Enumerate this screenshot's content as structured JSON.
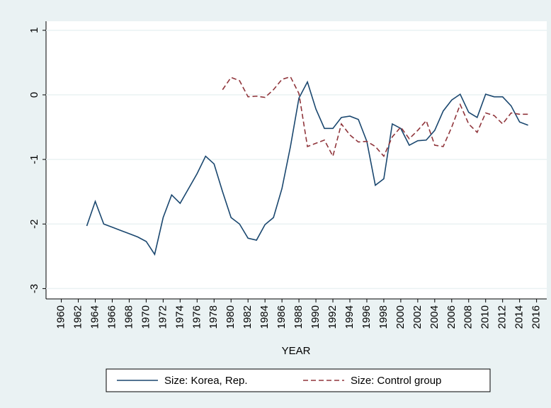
{
  "chart_data": {
    "type": "line",
    "x_label": "YEAR",
    "x": [
      1963,
      1964,
      1965,
      1966,
      1967,
      1968,
      1969,
      1970,
      1971,
      1972,
      1973,
      1974,
      1975,
      1976,
      1977,
      1978,
      1979,
      1980,
      1981,
      1982,
      1983,
      1984,
      1985,
      1986,
      1987,
      1988,
      1989,
      1990,
      1991,
      1992,
      1993,
      1994,
      1995,
      1996,
      1997,
      1998,
      1999,
      2000,
      2001,
      2002,
      2003,
      2004,
      2005,
      2006,
      2007,
      2008,
      2009,
      2010,
      2011,
      2012,
      2013,
      2014,
      2015
    ],
    "series": [
      {
        "name": "Size: Korea, Rep.",
        "color": "#1a476f",
        "dash": "solid",
        "values": [
          -2.03,
          -1.65,
          -2.0,
          -2.05,
          -2.1,
          -2.15,
          -2.2,
          -2.27,
          -2.47,
          -1.9,
          -1.55,
          -1.68,
          -1.45,
          -1.22,
          -0.95,
          -1.07,
          -1.5,
          -1.9,
          -2.0,
          -2.22,
          -2.25,
          -2.01,
          -1.9,
          -1.45,
          -0.8,
          -0.05,
          0.2,
          -0.22,
          -0.52,
          -0.52,
          -0.35,
          -0.33,
          -0.38,
          -0.72,
          -1.4,
          -1.3,
          -0.45,
          -0.52,
          -0.78,
          -0.71,
          -0.7,
          -0.55,
          -0.25,
          -0.08,
          0.01,
          -0.27,
          -0.35,
          0.01,
          -0.03,
          -0.03,
          -0.17,
          -0.42,
          -0.47
        ]
      },
      {
        "name": "Size: Control group",
        "color": "#90353b",
        "dash": "dashed",
        "values": [
          null,
          null,
          null,
          null,
          null,
          null,
          null,
          null,
          null,
          null,
          null,
          null,
          null,
          null,
          null,
          null,
          0.08,
          0.27,
          0.22,
          -0.03,
          -0.02,
          -0.04,
          0.08,
          0.24,
          0.28,
          0.02,
          -0.8,
          -0.75,
          -0.7,
          -0.95,
          -0.45,
          -0.62,
          -0.73,
          -0.72,
          -0.8,
          -0.95,
          -0.65,
          -0.5,
          -0.68,
          -0.55,
          -0.4,
          -0.78,
          -0.8,
          -0.5,
          -0.15,
          -0.45,
          -0.58,
          -0.28,
          -0.32,
          -0.45,
          -0.28,
          -0.3,
          -0.3
        ]
      }
    ],
    "xlim": [
      1958.2,
      2017.2
    ],
    "xticks": [
      1960,
      1962,
      1964,
      1966,
      1968,
      1970,
      1972,
      1974,
      1976,
      1978,
      1980,
      1982,
      1984,
      1986,
      1988,
      1990,
      1992,
      1994,
      1996,
      1998,
      2000,
      2002,
      2004,
      2006,
      2008,
      2010,
      2012,
      2014,
      2016
    ],
    "ylim": [
      -3.16,
      1.14
    ],
    "yticks": [
      1,
      0,
      -1,
      -2,
      -3
    ],
    "grid": true,
    "legend": "bottom"
  }
}
